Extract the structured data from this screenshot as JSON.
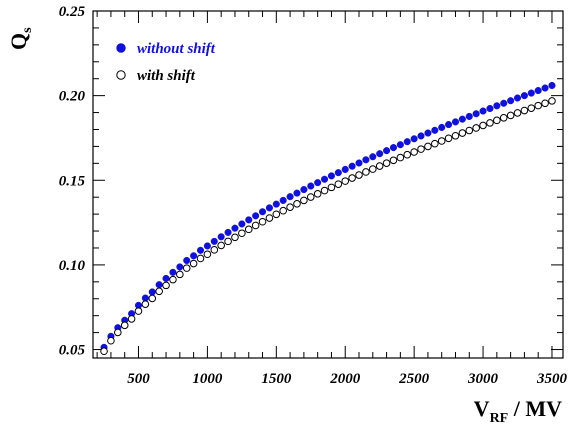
{
  "chart_data": {
    "type": "scatter",
    "x_axis": {
      "label_main": "V",
      "label_sub": "RF",
      "label_suffix": " / MV",
      "min": 170,
      "max": 3580,
      "ticks": [
        "500",
        "1000",
        "1500",
        "2000",
        "2500",
        "3000",
        "3500"
      ]
    },
    "y_axis": {
      "label_main": "Q",
      "label_sub": "s",
      "min": 0.045,
      "max": 0.25,
      "ticks": [
        "0.05",
        "0.10",
        "0.15",
        "0.20",
        "0.25"
      ]
    },
    "grid": false,
    "legend_position": "top-left",
    "series": [
      {
        "name": "without shift",
        "color": "#1010e0",
        "marker": "filled-circle",
        "x": [
          250,
          300,
          350,
          400,
          450,
          500,
          550,
          600,
          650,
          700,
          750,
          800,
          850,
          900,
          950,
          1000,
          1050,
          1100,
          1150,
          1200,
          1250,
          1300,
          1350,
          1400,
          1450,
          1500,
          1550,
          1600,
          1650,
          1700,
          1750,
          1800,
          1850,
          1900,
          1950,
          2000,
          2050,
          2100,
          2150,
          2200,
          2250,
          2300,
          2350,
          2400,
          2450,
          2500,
          2550,
          2600,
          2650,
          2700,
          2750,
          2800,
          2850,
          2900,
          2950,
          3000,
          3050,
          3100,
          3150,
          3200,
          3250,
          3300,
          3350,
          3400,
          3450,
          3500
        ],
        "y": [
          0.0513,
          0.0578,
          0.0629,
          0.0673,
          0.0712,
          0.0761,
          0.0804,
          0.084,
          0.0883,
          0.092,
          0.0956,
          0.0988,
          0.1026,
          0.1054,
          0.1086,
          0.1112,
          0.1139,
          0.1166,
          0.1192,
          0.1217,
          0.1242,
          0.1266,
          0.129,
          0.1314,
          0.1337,
          0.1359,
          0.1381,
          0.1403,
          0.1424,
          0.1445,
          0.1466,
          0.1486,
          0.1506,
          0.1526,
          0.1545,
          0.1564,
          0.1583,
          0.1602,
          0.1621,
          0.1639,
          0.1657,
          0.1675,
          0.1693,
          0.171,
          0.1728,
          0.1745,
          0.1762,
          0.1779,
          0.1795,
          0.1812,
          0.1829,
          0.1845,
          0.1861,
          0.1877,
          0.1893,
          0.1909,
          0.1924,
          0.194,
          0.1955,
          0.197,
          0.1986,
          0.2,
          0.2015,
          0.203,
          0.2045,
          0.206
        ]
      },
      {
        "name": "with shift",
        "color": "#000000",
        "marker": "open-circle",
        "x": [
          250,
          300,
          350,
          400,
          450,
          500,
          550,
          600,
          650,
          700,
          750,
          800,
          850,
          900,
          950,
          1000,
          1050,
          1100,
          1150,
          1200,
          1250,
          1300,
          1350,
          1400,
          1450,
          1500,
          1550,
          1600,
          1650,
          1700,
          1750,
          1800,
          1850,
          1900,
          1950,
          2000,
          2050,
          2100,
          2150,
          2200,
          2250,
          2300,
          2350,
          2400,
          2450,
          2500,
          2550,
          2600,
          2650,
          2700,
          2750,
          2800,
          2850,
          2900,
          2950,
          3000,
          3050,
          3100,
          3150,
          3200,
          3250,
          3300,
          3350,
          3400,
          3450,
          3500
        ],
        "y": [
          0.049,
          0.0552,
          0.0601,
          0.0643,
          0.0681,
          0.0727,
          0.0768,
          0.0802,
          0.0844,
          0.0879,
          0.0913,
          0.0944,
          0.0981,
          0.1008,
          0.1038,
          0.1063,
          0.1089,
          0.1115,
          0.1139,
          0.1163,
          0.1187,
          0.121,
          0.1233,
          0.1255,
          0.1277,
          0.1299,
          0.132,
          0.1341,
          0.1361,
          0.1381,
          0.1401,
          0.142,
          0.1439,
          0.1458,
          0.1477,
          0.1495,
          0.1513,
          0.1531,
          0.1549,
          0.1566,
          0.1584,
          0.1601,
          0.1618,
          0.1634,
          0.1651,
          0.1667,
          0.1684,
          0.17,
          0.1716,
          0.1732,
          0.1748,
          0.1763,
          0.1779,
          0.1794,
          0.1809,
          0.1824,
          0.1839,
          0.1854,
          0.1869,
          0.1883,
          0.1898,
          0.1912,
          0.1926,
          0.1941,
          0.1955,
          0.1969
        ]
      }
    ]
  }
}
